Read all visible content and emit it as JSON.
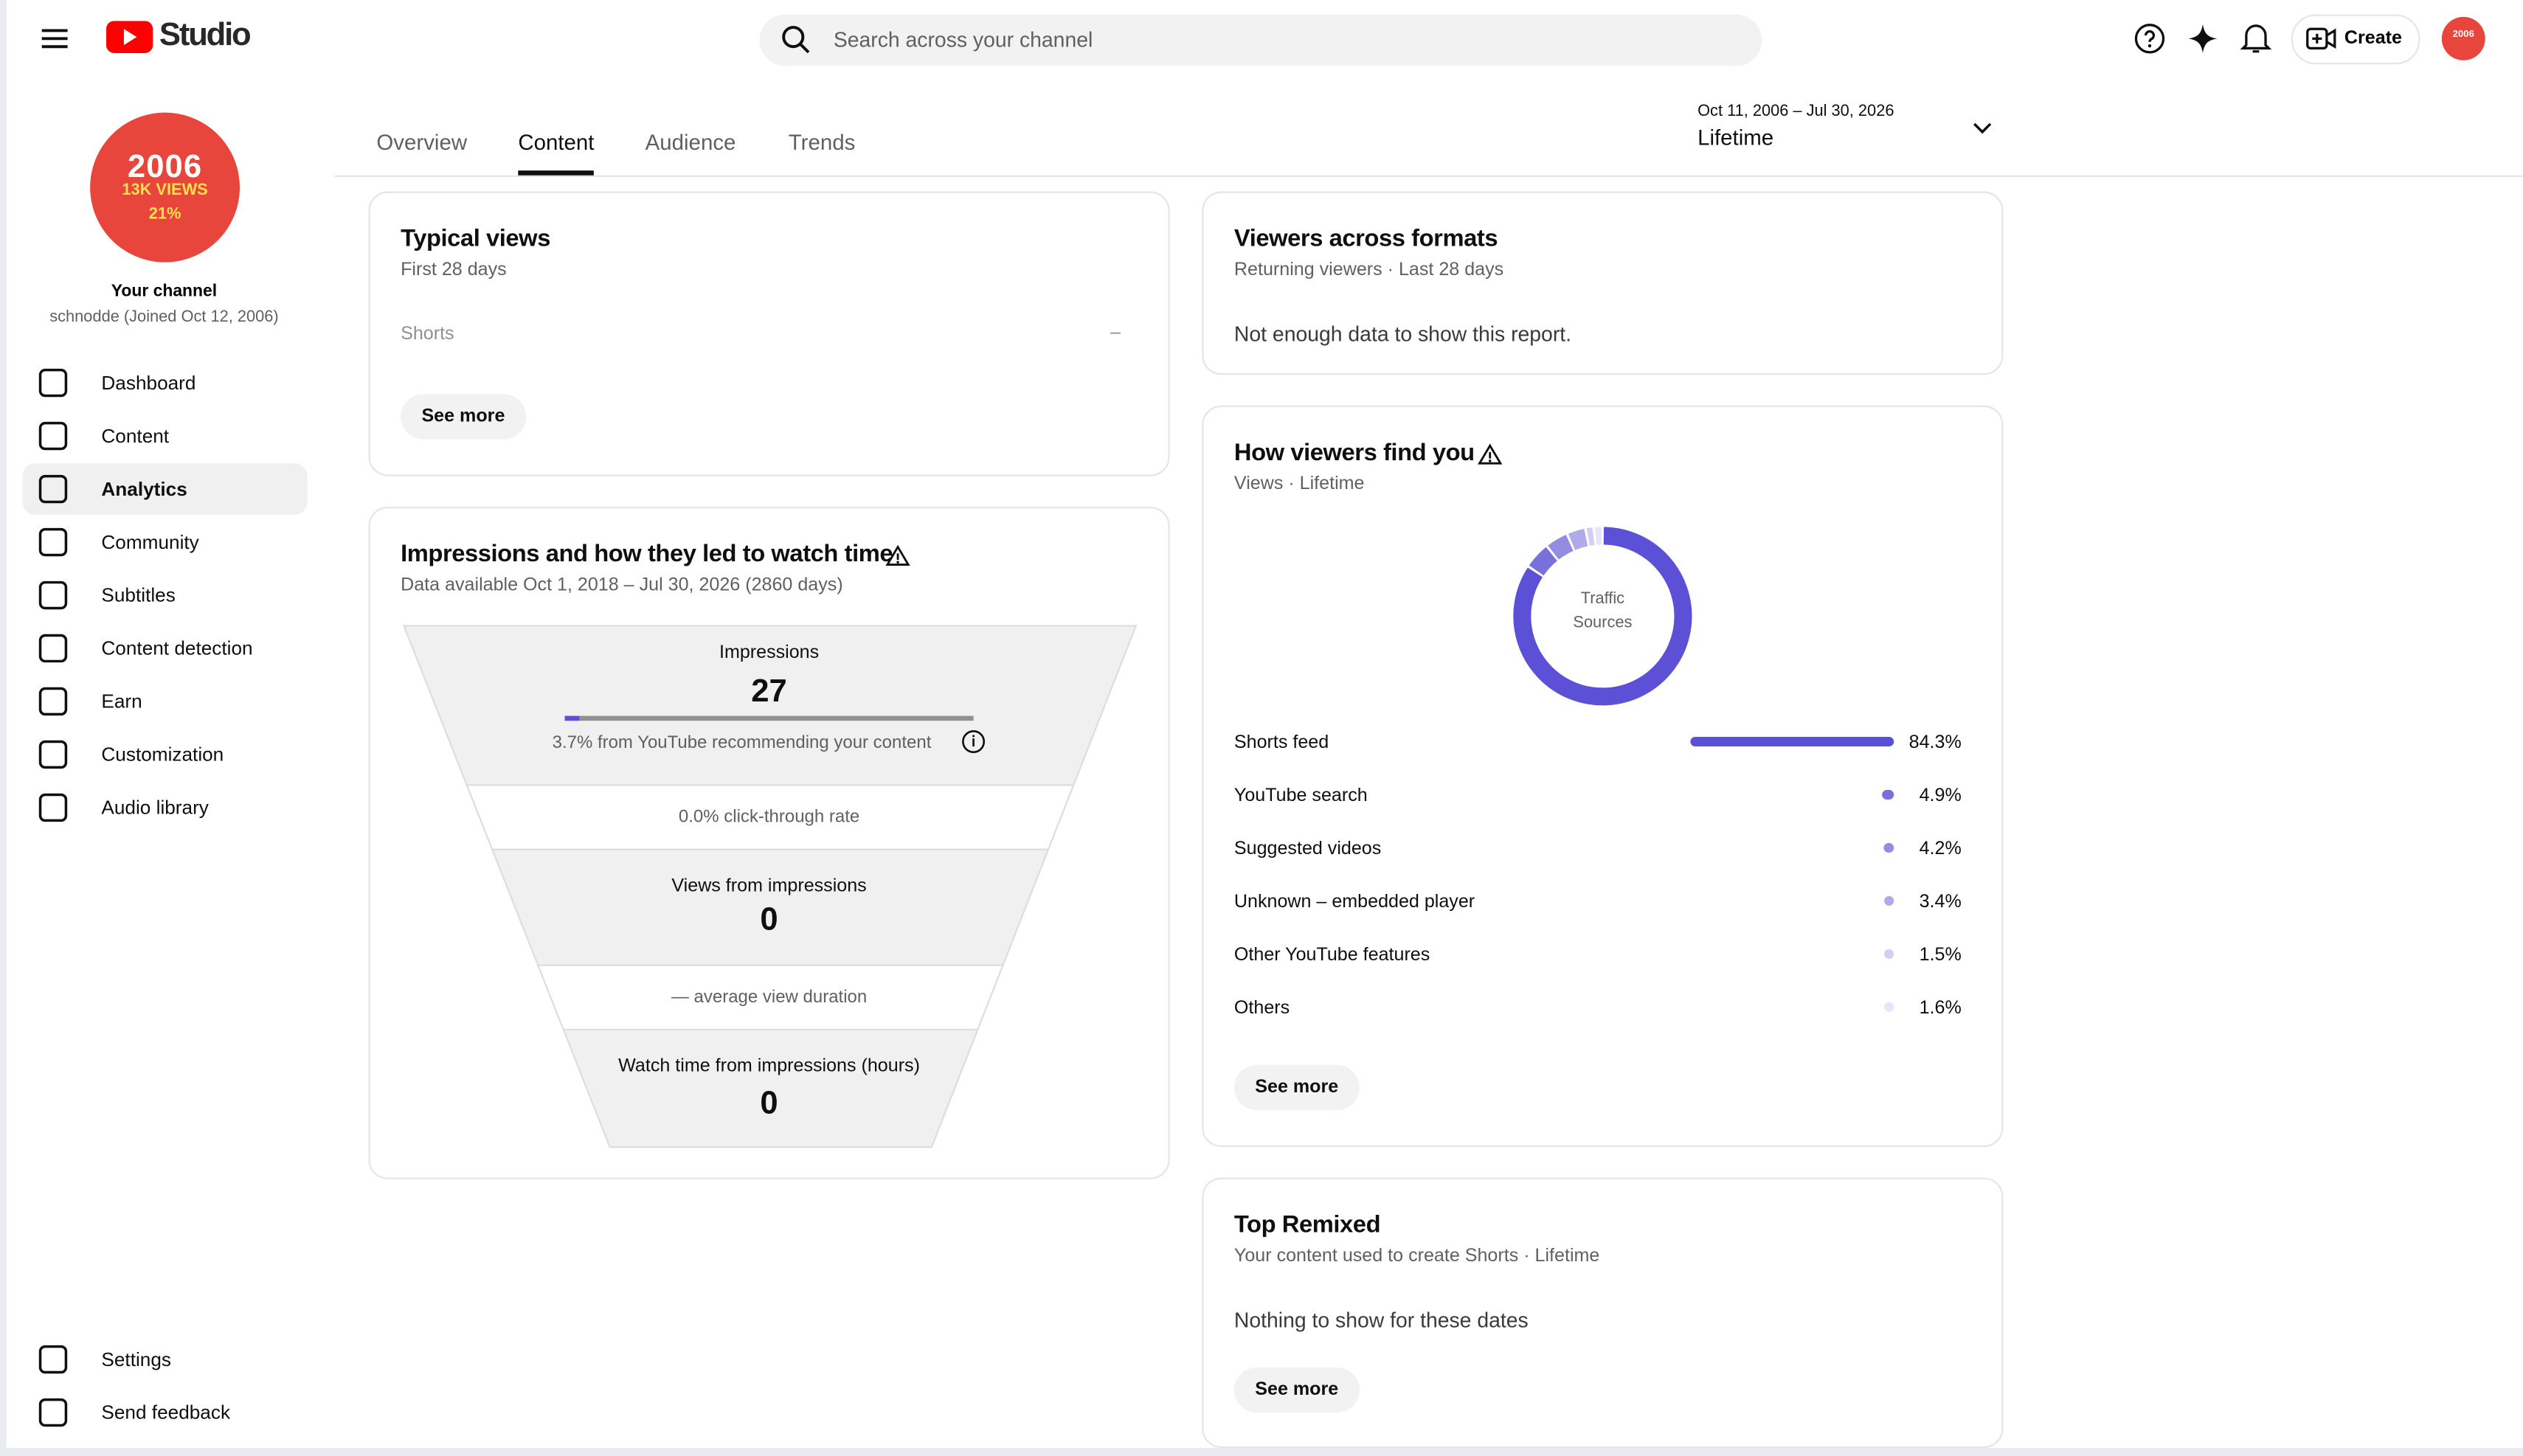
{
  "header": {
    "logo": "Studio",
    "search_placeholder": "Search across your channel",
    "create": "Create"
  },
  "channel": {
    "avatar_year": "2006",
    "avatar_views": "13K VIEWS",
    "avatar_pct": "21%",
    "label": "Your channel",
    "handle": "schnodde (Joined Oct 12, 2006)"
  },
  "nav": [
    "Dashboard",
    "Content",
    "Analytics",
    "Community",
    "Subtitles",
    "Content detection",
    "Earn",
    "Customization",
    "Audio library"
  ],
  "active_nav": 2,
  "nav_bottom": [
    "Settings",
    "Send feedback"
  ],
  "tabs": [
    "Overview",
    "Content",
    "Audience",
    "Trends"
  ],
  "active_tab": 1,
  "date_range": {
    "range": "Oct 11, 2006 – Jul 30, 2026",
    "label": "Lifetime"
  },
  "typical_views": {
    "title": "Typical views",
    "subtitle": "First 28 days",
    "row_label": "Shorts",
    "row_value": "–",
    "button": "See more"
  },
  "impressions": {
    "title": "Impressions and how they led to watch time",
    "subtitle": "Data available Oct 1, 2018 – Jul 30, 2026 (2860 days)",
    "impressions_label": "Impressions",
    "impressions": 27,
    "recommend_text": "3.7% from YouTube recommending your content",
    "ctr_text": "0.0% click-through rate",
    "views_label": "Views from impressions",
    "views": 0,
    "avd_text": "— average view duration",
    "watch_label": "Watch time from impressions (hours)",
    "watch": 0
  },
  "viewers_formats": {
    "title": "Viewers across formats",
    "subtitle": "Returning viewers · Last 28 days",
    "message": "Not enough data to show this report."
  },
  "traffic": {
    "title": "How viewers find you",
    "subtitle": "Views · Lifetime",
    "center": [
      "Traffic",
      "Sources"
    ],
    "sources": [
      {
        "name": "Shorts feed",
        "value": 84.3,
        "label": "84.3%",
        "color": "#5b50d6"
      },
      {
        "name": "YouTube search",
        "value": 4.9,
        "label": "4.9%",
        "color": "#7a70dc"
      },
      {
        "name": "Suggested videos",
        "value": 4.2,
        "label": "4.2%",
        "color": "#948be3"
      },
      {
        "name": "Unknown – embedded player",
        "value": 3.4,
        "label": "3.4%",
        "color": "#b1aaea"
      },
      {
        "name": "Other YouTube features",
        "value": 1.5,
        "label": "1.5%",
        "color": "#d3cff4"
      },
      {
        "name": "Others",
        "value": 1.6,
        "label": "1.6%",
        "color": "#e7e5f8"
      }
    ],
    "button": "See more"
  },
  "top_remixed": {
    "title": "Top Remixed",
    "subtitle": "Your content used to create Shorts · Lifetime",
    "message": "Nothing to show for these dates",
    "button": "See more"
  }
}
